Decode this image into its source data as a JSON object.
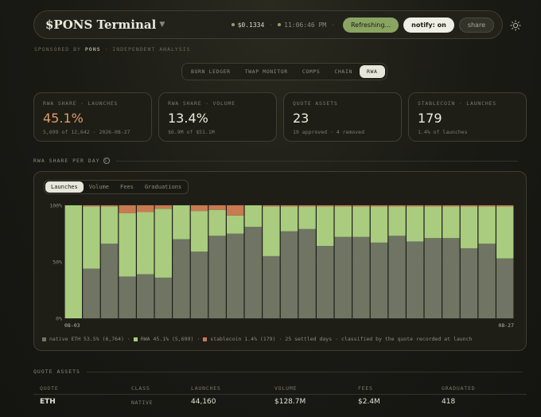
{
  "header": {
    "brand": "$PONS Terminal",
    "price": "$0.1334",
    "time": "11:06:46 PM",
    "refresh_label": "Refreshing...",
    "notify_label": "notify: on",
    "share_label": "share",
    "theme_icon": "sun-icon"
  },
  "sponsor": {
    "prefix": "SPONSORED BY",
    "name": "PONS",
    "suffix": "· INDEPENDENT ANALYSIS"
  },
  "tabs": [
    "BURN LEDGER",
    "TWAP MONITOR",
    "COMPS",
    "CHAIN",
    "RWA"
  ],
  "active_tab": "RWA",
  "stats": [
    {
      "label": "RWA SHARE · LAUNCHES",
      "value": "45.1%",
      "sub": "5,699 of 12,642 · 2026-08-27"
    },
    {
      "label": "RWA SHARE · VOLUME",
      "value": "13.4%",
      "sub": "$6.9M of $51.1M"
    },
    {
      "label": "QUOTE ASSETS",
      "value": "23",
      "sub": "19 approved · 4 removed"
    },
    {
      "label": "STABLECOIN · LAUNCHES",
      "value": "179",
      "sub": "1.4% of launches"
    }
  ],
  "chart_section_title": "RWA SHARE PER DAY",
  "chart_tabs": [
    "Launches",
    "Volume",
    "Fees",
    "Graduations"
  ],
  "active_chart_tab": "Launches",
  "colors": {
    "native": "#6f7463",
    "rwa": "#a9cc7f",
    "stable": "#c87a52"
  },
  "legend": {
    "native": "native ETH 53.5% (6,764)",
    "rwa": "RWA 45.1% (5,699)",
    "stable": "stablecoin 1.4% (179)",
    "days": "25 settled days",
    "note": "classified by the quote recorded at launch"
  },
  "chart_data": {
    "type": "bar",
    "stacked": true,
    "y_ticks": [
      "100%",
      "50%",
      "0%"
    ],
    "x_start_label": "08-03",
    "x_end_label": "08-27",
    "ylim": [
      0,
      100
    ],
    "series": [
      {
        "name": "native ETH",
        "values": [
          0,
          44,
          66,
          37,
          39,
          36,
          70,
          59,
          73,
          75,
          81,
          55,
          77,
          79,
          64,
          72,
          72,
          67,
          73,
          68,
          71,
          71,
          62,
          66,
          53
        ]
      },
      {
        "name": "RWA",
        "values": [
          100,
          55,
          33,
          56,
          55,
          61,
          30,
          36,
          23,
          16,
          19,
          44,
          22,
          20,
          35,
          27,
          27,
          32,
          26,
          31,
          28,
          28,
          37,
          33,
          46
        ]
      },
      {
        "name": "stablecoin",
        "values": [
          0,
          1,
          1,
          7,
          6,
          3,
          0,
          5,
          4,
          9,
          0,
          1,
          1,
          1,
          1,
          1,
          1,
          1,
          1,
          1,
          1,
          1,
          1,
          1,
          1
        ]
      }
    ]
  },
  "quote_assets": {
    "title": "QUOTE ASSETS",
    "columns": [
      "QUOTE",
      "CLASS",
      "LAUNCHES",
      "VOLUME",
      "FEES",
      "GRADUATED"
    ],
    "rows": [
      [
        "ETH",
        "NATIVE",
        "44,160",
        "$128.7M",
        "$2.4M",
        "418"
      ]
    ]
  }
}
